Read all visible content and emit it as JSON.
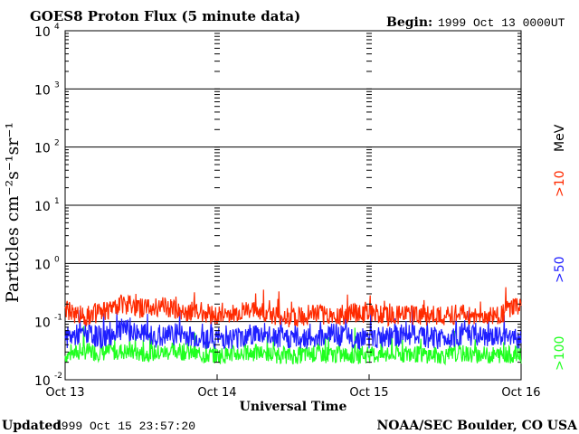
{
  "title": "GOES8 Proton Flux (5 minute data)",
  "begin_label": "Begin:",
  "begin_value": "1999 Oct 13 0000UT",
  "updated_label": "Updated",
  "updated_value": "1999 Oct 15 23:57:20",
  "credit": "NOAA/SEC Boulder, CO USA",
  "colors": {
    "gt10": "#ff2a00",
    "gt50": "#1f1fff",
    "gt100": "#1fff1f",
    "axis": "#000000"
  },
  "chart_data": {
    "type": "line",
    "title": "GOES8 Proton Flux (5 minute data)",
    "xlabel": "Universal Time",
    "ylabel": "Particles cm⁻²s⁻¹sr⁻¹",
    "yscale": "log",
    "ylim": [
      0.01,
      10000
    ],
    "yticks": [
      {
        "base": "10",
        "exp": "-2"
      },
      {
        "base": "10",
        "exp": "-1"
      },
      {
        "base": "10",
        "exp": "0"
      },
      {
        "base": "10",
        "exp": "1"
      },
      {
        "base": "10",
        "exp": "2"
      },
      {
        "base": "10",
        "exp": "3"
      },
      {
        "base": "10",
        "exp": "4"
      }
    ],
    "xlim": [
      "1999-10-13 00:00",
      "1999-10-16 00:00"
    ],
    "xticks": [
      "Oct 13",
      "Oct 14",
      "Oct 15",
      "Oct 16"
    ],
    "grid": true,
    "legend": {
      "placement": "right",
      "unit": "MeV",
      "entries": [
        ">10",
        ">50",
        ">100"
      ]
    },
    "series": [
      {
        "name": ">10 MeV",
        "x": [
          "1999-10-13 00:00",
          "1999-10-13 03:00",
          "1999-10-13 06:00",
          "1999-10-13 09:00",
          "1999-10-13 12:00",
          "1999-10-13 15:00",
          "1999-10-13 18:00",
          "1999-10-13 21:00",
          "1999-10-14 00:00",
          "1999-10-14 03:00",
          "1999-10-14 06:00",
          "1999-10-14 09:00",
          "1999-10-14 12:00",
          "1999-10-14 15:00",
          "1999-10-14 18:00",
          "1999-10-14 21:00",
          "1999-10-15 00:00",
          "1999-10-15 03:00",
          "1999-10-15 06:00",
          "1999-10-15 09:00",
          "1999-10-15 12:00",
          "1999-10-15 15:00",
          "1999-10-15 18:00",
          "1999-10-15 21:00",
          "1999-10-16 00:00"
        ],
        "values": [
          0.15,
          0.12,
          0.14,
          0.2,
          0.16,
          0.18,
          0.14,
          0.15,
          0.12,
          0.13,
          0.15,
          0.12,
          0.11,
          0.13,
          0.12,
          0.13,
          0.14,
          0.12,
          0.13,
          0.12,
          0.12,
          0.13,
          0.11,
          0.13,
          0.2
        ]
      },
      {
        "name": ">50 MeV",
        "x": [
          "1999-10-13 00:00",
          "1999-10-13 03:00",
          "1999-10-13 06:00",
          "1999-10-13 09:00",
          "1999-10-13 12:00",
          "1999-10-13 15:00",
          "1999-10-13 18:00",
          "1999-10-13 21:00",
          "1999-10-14 00:00",
          "1999-10-14 03:00",
          "1999-10-14 06:00",
          "1999-10-14 09:00",
          "1999-10-14 12:00",
          "1999-10-14 15:00",
          "1999-10-14 18:00",
          "1999-10-14 21:00",
          "1999-10-15 00:00",
          "1999-10-15 03:00",
          "1999-10-15 06:00",
          "1999-10-15 09:00",
          "1999-10-15 12:00",
          "1999-10-15 15:00",
          "1999-10-15 18:00",
          "1999-10-15 21:00",
          "1999-10-16 00:00"
        ],
        "values": [
          0.05,
          0.06,
          0.05,
          0.07,
          0.06,
          0.05,
          0.06,
          0.05,
          0.05,
          0.05,
          0.06,
          0.05,
          0.05,
          0.05,
          0.06,
          0.05,
          0.05,
          0.05,
          0.06,
          0.05,
          0.05,
          0.06,
          0.05,
          0.05,
          0.05
        ]
      },
      {
        "name": ">100 MeV",
        "x": [
          "1999-10-13 00:00",
          "1999-10-13 03:00",
          "1999-10-13 06:00",
          "1999-10-13 09:00",
          "1999-10-13 12:00",
          "1999-10-13 15:00",
          "1999-10-13 18:00",
          "1999-10-13 21:00",
          "1999-10-14 00:00",
          "1999-10-14 03:00",
          "1999-10-14 06:00",
          "1999-10-14 09:00",
          "1999-10-14 12:00",
          "1999-10-14 15:00",
          "1999-10-14 18:00",
          "1999-10-14 21:00",
          "1999-10-15 00:00",
          "1999-10-15 03:00",
          "1999-10-15 06:00",
          "1999-10-15 09:00",
          "1999-10-15 12:00",
          "1999-10-15 15:00",
          "1999-10-15 18:00",
          "1999-10-15 21:00",
          "1999-10-16 00:00"
        ],
        "values": [
          0.025,
          0.03,
          0.028,
          0.03,
          0.027,
          0.028,
          0.03,
          0.026,
          0.025,
          0.027,
          0.028,
          0.026,
          0.025,
          0.027,
          0.026,
          0.025,
          0.026,
          0.025,
          0.027,
          0.026,
          0.025,
          0.027,
          0.025,
          0.026,
          0.026
        ]
      }
    ]
  }
}
